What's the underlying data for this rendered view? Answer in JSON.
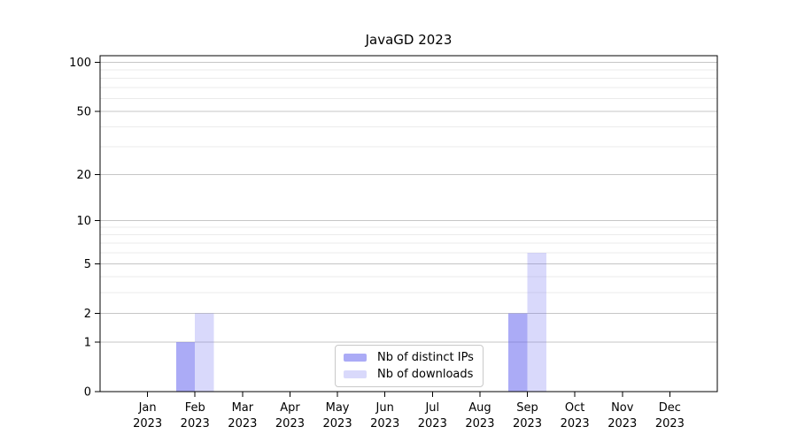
{
  "chart_data": {
    "type": "bar",
    "title": "JavaGD 2023",
    "categories": [
      "Jan",
      "Feb",
      "Mar",
      "Apr",
      "May",
      "Jun",
      "Jul",
      "Aug",
      "Sep",
      "Oct",
      "Nov",
      "Dec"
    ],
    "category_year": "2023",
    "series": [
      {
        "name": "Nb of distinct IPs",
        "color": "rgba(102,102,238,0.55)",
        "values": [
          0,
          1,
          0,
          0,
          0,
          0,
          0,
          0,
          2,
          0,
          0,
          0
        ]
      },
      {
        "name": "Nb of downloads",
        "color": "rgba(102,102,238,0.25)",
        "values": [
          0,
          2,
          0,
          0,
          0,
          0,
          0,
          0,
          6,
          0,
          0,
          0
        ]
      }
    ],
    "y_axis": {
      "scale": "log1p",
      "min": 0,
      "max": 110,
      "major_ticks": [
        0,
        1,
        2,
        5,
        10,
        20,
        50,
        100
      ],
      "minor_gridlines": [
        3,
        4,
        6,
        7,
        8,
        9,
        30,
        40,
        60,
        70,
        80,
        90
      ]
    },
    "xlabel": "",
    "ylabel": "",
    "grid": {
      "major_color": "#c6c6c6",
      "minor_color": "#ebebeb"
    },
    "legend": {
      "position": "bottom-center"
    },
    "axis_color": "#000000",
    "text_color": "#000000",
    "background": "#ffffff"
  }
}
